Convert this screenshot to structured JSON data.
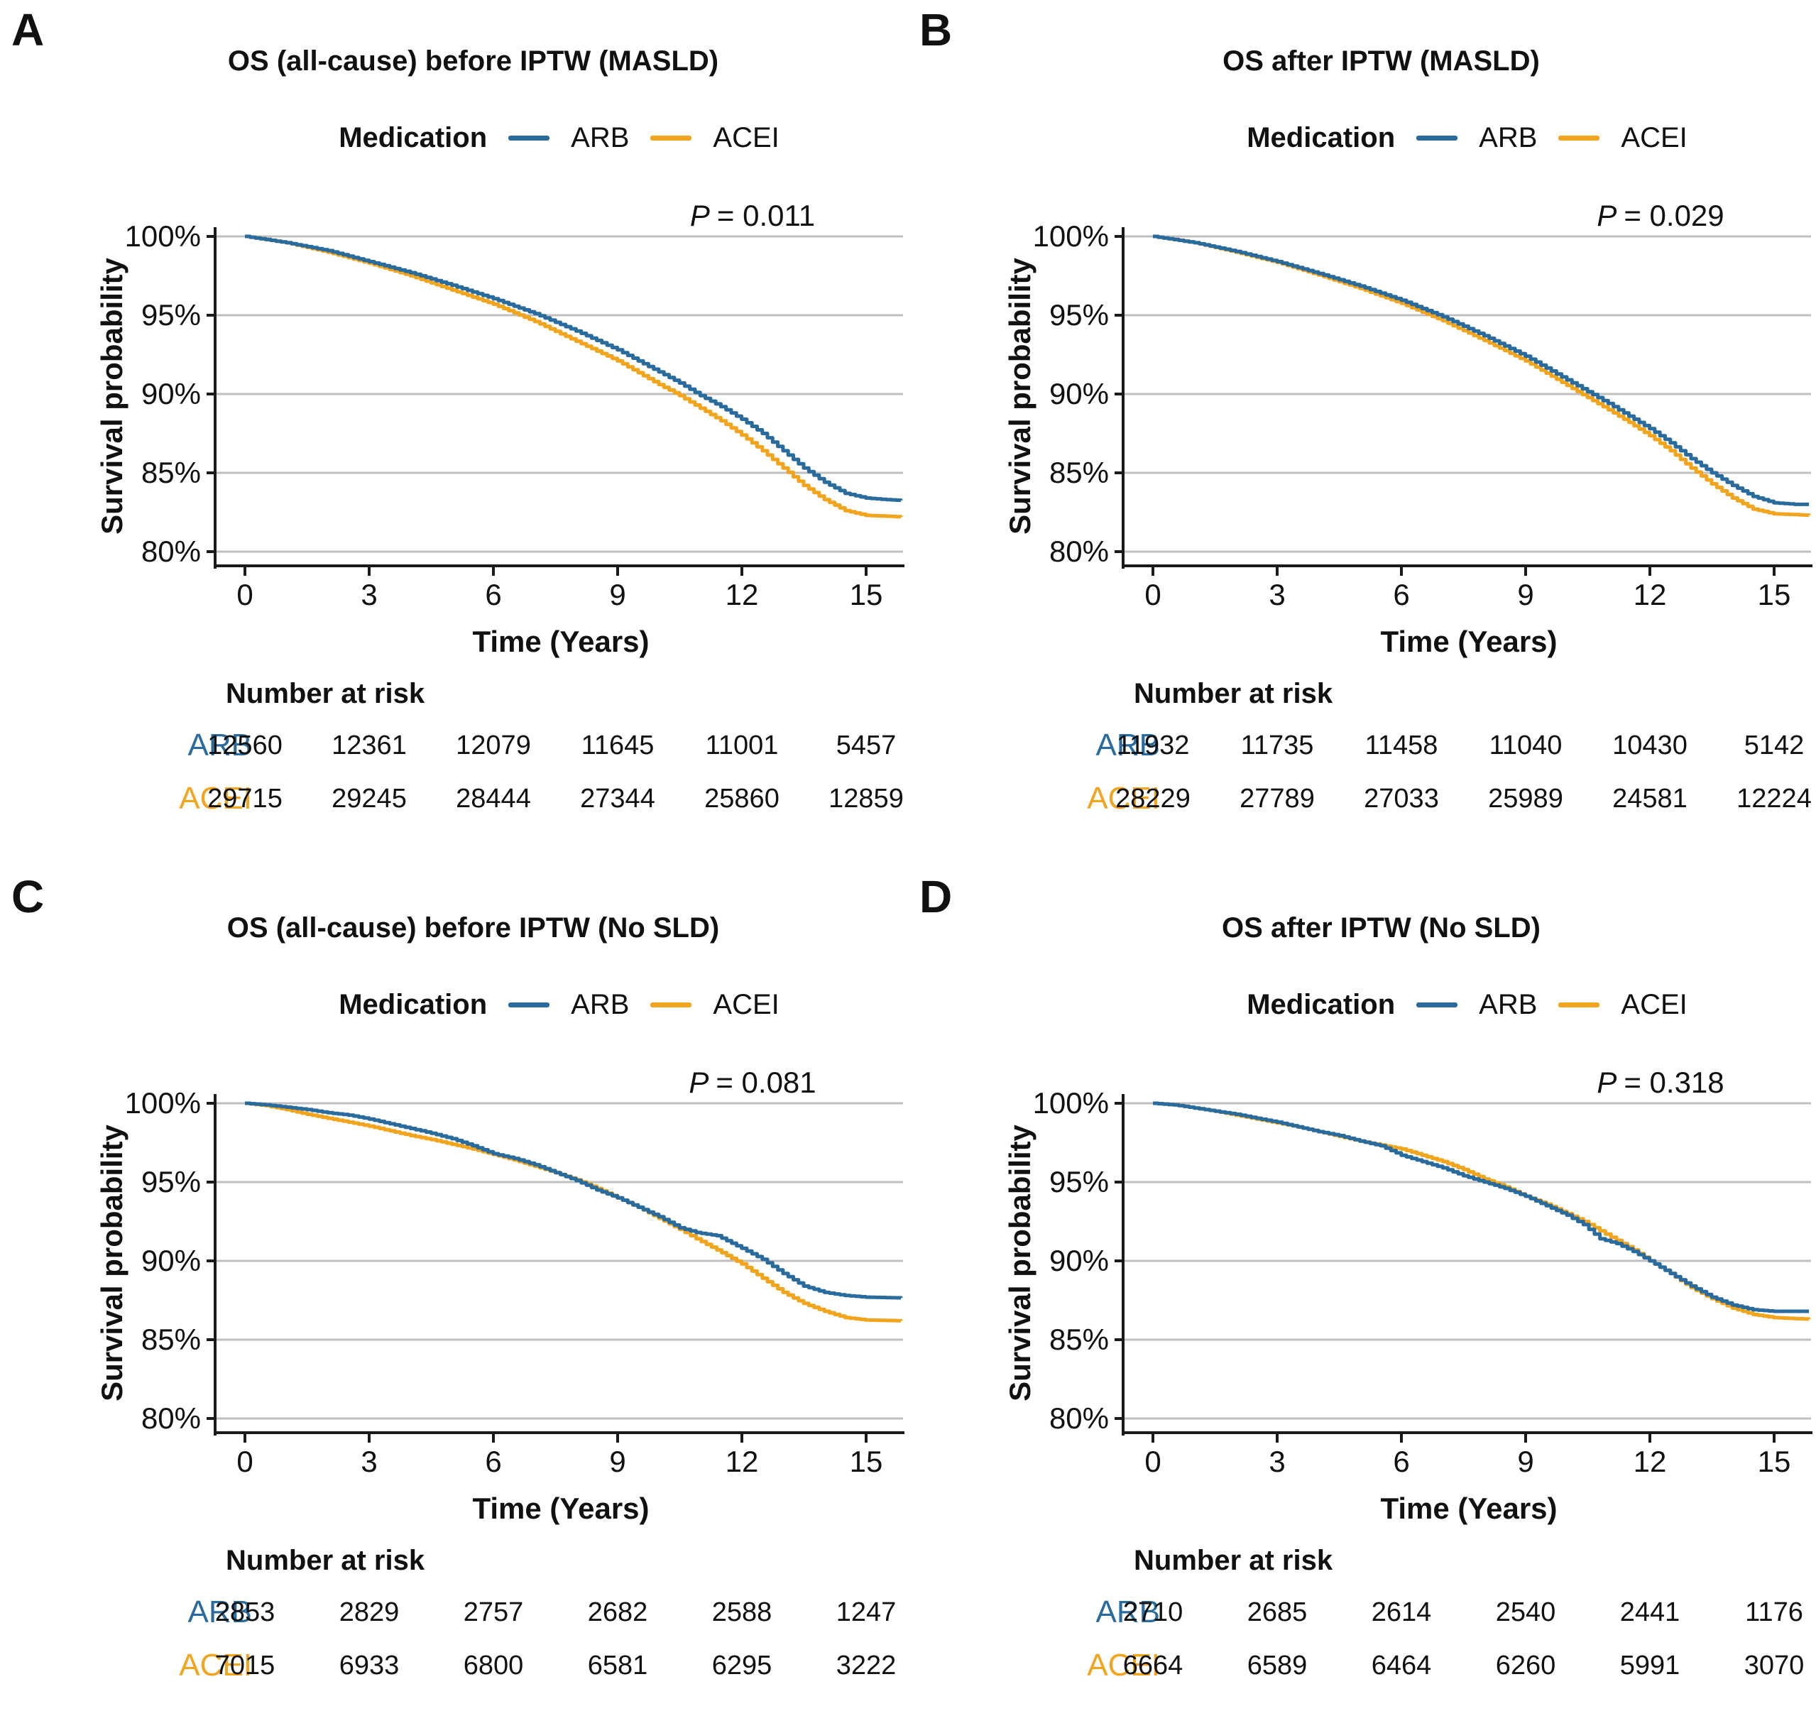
{
  "p_label": "P",
  "risk_header": "Number at risk",
  "legend": {
    "title": "Medication"
  },
  "axes": {
    "x_label": "Time (Years)",
    "y_label": "Survival probability",
    "x_ticks": [
      "0",
      "3",
      "6",
      "9",
      "12",
      "15"
    ],
    "y_ticks": [
      "100%",
      "95%",
      "90%",
      "85%",
      "80%"
    ],
    "x_range_years": [
      0,
      15.85
    ],
    "y_gridlines_percent": [
      100,
      95,
      90,
      85,
      80
    ]
  },
  "colors": {
    "arb": "#2A6B9E",
    "acei": "#F2A41C",
    "grid": "#BFBFBF",
    "axis": "#1A1A1A",
    "text": "#111111"
  },
  "panels": [
    {
      "letter": "A",
      "risk_rows": [
        {
          "label": "ARB",
          "values": [
            "12560",
            "12361",
            "12079",
            "11645",
            "11001",
            "5457"
          ]
        },
        {
          "label": "ACEI",
          "values": [
            "29715",
            "29245",
            "28444",
            "27344",
            "25860",
            "12859"
          ]
        }
      ]
    },
    {
      "letter": "B",
      "risk_rows": [
        {
          "label": "ARB",
          "values": [
            "11932",
            "11735",
            "11458",
            "11040",
            "10430",
            "5142"
          ]
        },
        {
          "label": "ACEI",
          "values": [
            "28229",
            "27789",
            "27033",
            "25989",
            "24581",
            "12224"
          ]
        }
      ]
    },
    {
      "letter": "C",
      "risk_rows": [
        {
          "label": "ARB",
          "values": [
            "2853",
            "2829",
            "2757",
            "2682",
            "2588",
            "1247"
          ]
        },
        {
          "label": "ACEI",
          "values": [
            "7015",
            "6933",
            "6800",
            "6581",
            "6295",
            "3222"
          ]
        }
      ]
    },
    {
      "letter": "D",
      "risk_rows": [
        {
          "label": "ARB",
          "values": [
            "2710",
            "2685",
            "2614",
            "2540",
            "2441",
            "1176"
          ]
        },
        {
          "label": "ACEI",
          "values": [
            "6664",
            "6589",
            "6464",
            "6260",
            "5991",
            "3070"
          ]
        }
      ]
    }
  ],
  "chart_data": [
    {
      "type": "line",
      "subtype": "kaplan-meier",
      "title": "OS (all-cause) before IPTW (MASLD)",
      "p_value": 0.011,
      "p_display": "= 0.011",
      "xlabel": "Time (Years)",
      "ylabel": "Survival probability",
      "xlim": [
        0,
        15.85
      ],
      "ylim_percent": [
        80,
        100
      ],
      "grid": "horizontal",
      "legend_position": "top",
      "series": [
        {
          "name": "ARB",
          "color_key": "arb",
          "x": [
            0,
            1,
            2,
            3,
            4,
            5,
            6,
            7,
            8,
            9,
            10,
            10.5,
            11,
            11.5,
            12,
            12.5,
            13,
            13.5,
            14,
            14.5,
            15,
            15.5,
            15.85
          ],
          "y": [
            100,
            99.6,
            99.1,
            98.4,
            97.7,
            96.9,
            96.05,
            95.1,
            94.0,
            92.8,
            91.4,
            90.7,
            89.9,
            89.2,
            88.4,
            87.5,
            86.4,
            85.3,
            84.4,
            83.7,
            83.4,
            83.3,
            83.25
          ]
        },
        {
          "name": "ACEI",
          "color_key": "acei",
          "x": [
            0,
            1,
            2,
            3,
            4,
            5,
            6,
            7,
            8,
            9,
            10,
            10.5,
            11,
            11.5,
            12,
            12.5,
            13,
            13.5,
            14,
            14.5,
            15,
            15.5,
            15.85
          ],
          "y": [
            100,
            99.6,
            99.0,
            98.3,
            97.5,
            96.6,
            95.7,
            94.6,
            93.35,
            92.1,
            90.6,
            89.9,
            89.1,
            88.3,
            87.4,
            86.4,
            85.3,
            84.2,
            83.3,
            82.6,
            82.3,
            82.25,
            82.2
          ]
        }
      ]
    },
    {
      "type": "line",
      "subtype": "kaplan-meier",
      "title": "OS after IPTW (MASLD)",
      "p_value": 0.029,
      "p_display": "= 0.029",
      "xlabel": "Time (Years)",
      "ylabel": "Survival probability",
      "xlim": [
        0,
        15.85
      ],
      "ylim_percent": [
        80,
        100
      ],
      "grid": "horizontal",
      "legend_position": "top",
      "series": [
        {
          "name": "ARB",
          "color_key": "arb",
          "x": [
            0,
            1,
            2,
            3,
            4,
            5,
            6,
            7,
            8,
            9,
            10,
            11,
            11.5,
            12,
            12.5,
            13,
            13.5,
            14,
            14.5,
            15,
            15.5,
            15.85
          ],
          "y": [
            100,
            99.6,
            99.05,
            98.4,
            97.65,
            96.85,
            95.95,
            94.9,
            93.7,
            92.4,
            90.9,
            89.4,
            88.6,
            87.8,
            86.9,
            85.9,
            85.0,
            84.2,
            83.5,
            83.1,
            83.0,
            83.0
          ]
        },
        {
          "name": "ACEI",
          "color_key": "acei",
          "x": [
            0,
            1,
            2,
            3,
            4,
            5,
            6,
            7,
            8,
            9,
            10,
            11,
            11.5,
            12,
            12.5,
            13,
            13.5,
            14,
            14.5,
            15,
            15.5,
            15.85
          ],
          "y": [
            100,
            99.6,
            99.0,
            98.35,
            97.55,
            96.7,
            95.75,
            94.65,
            93.4,
            92.1,
            90.55,
            89.0,
            88.2,
            87.35,
            86.4,
            85.3,
            84.3,
            83.4,
            82.7,
            82.4,
            82.35,
            82.3
          ]
        }
      ]
    },
    {
      "type": "line",
      "subtype": "kaplan-meier",
      "title": "OS (all-cause) before IPTW (No SLD)",
      "p_value": 0.081,
      "p_display": "= 0.081",
      "xlabel": "Time (Years)",
      "ylabel": "Survival probability",
      "xlim": [
        0,
        15.85
      ],
      "ylim_percent": [
        80,
        100
      ],
      "grid": "horizontal",
      "legend_position": "top",
      "series": [
        {
          "name": "ARB",
          "color_key": "arb",
          "x": [
            0,
            0.5,
            1,
            1.5,
            2,
            2.5,
            3,
            3.5,
            4,
            4.5,
            5,
            5.5,
            6,
            6.5,
            7,
            7.5,
            8,
            8.5,
            9,
            9.5,
            10,
            10.5,
            10.9,
            11.4,
            12,
            12.5,
            13,
            13.5,
            14,
            14.5,
            15,
            15.85
          ],
          "y": [
            100,
            99.9,
            99.75,
            99.6,
            99.4,
            99.25,
            99.0,
            98.7,
            98.4,
            98.1,
            97.75,
            97.3,
            96.8,
            96.5,
            96.1,
            95.6,
            95.1,
            94.5,
            94.0,
            93.4,
            92.8,
            92.1,
            91.8,
            91.6,
            90.8,
            90.1,
            89.2,
            88.4,
            88.0,
            87.8,
            87.7,
            87.65
          ]
        },
        {
          "name": "ACEI",
          "color_key": "acei",
          "x": [
            0,
            0.5,
            1,
            1.5,
            2,
            2.5,
            3,
            3.5,
            4,
            4.5,
            5,
            5.5,
            6,
            6.5,
            7,
            7.5,
            8,
            8.5,
            9,
            9.5,
            10,
            10.5,
            10.9,
            11.4,
            12,
            12.5,
            13,
            13.5,
            14,
            14.5,
            15,
            15.85
          ],
          "y": [
            100,
            99.85,
            99.6,
            99.3,
            99.05,
            98.8,
            98.55,
            98.25,
            97.95,
            97.7,
            97.4,
            97.1,
            96.75,
            96.4,
            96.0,
            95.6,
            95.15,
            94.6,
            94.0,
            93.4,
            92.7,
            92.0,
            91.4,
            90.7,
            89.8,
            88.9,
            88.0,
            87.3,
            86.8,
            86.4,
            86.25,
            86.2
          ]
        }
      ]
    },
    {
      "type": "line",
      "subtype": "kaplan-meier",
      "title": "OS after IPTW (No SLD)",
      "p_value": 0.318,
      "p_display": "= 0.318",
      "xlabel": "Time (Years)",
      "ylabel": "Survival probability",
      "xlim": [
        0,
        15.85
      ],
      "ylim_percent": [
        80,
        100
      ],
      "grid": "horizontal",
      "legend_position": "top",
      "series": [
        {
          "name": "ARB",
          "color_key": "arb",
          "x": [
            0,
            0.5,
            1,
            1.5,
            2,
            2.5,
            3,
            3.5,
            4,
            4.5,
            5,
            5.5,
            6,
            6.5,
            7,
            7.5,
            8,
            8.5,
            9,
            9.5,
            10,
            10.4,
            10.8,
            11.2,
            11.6,
            12,
            12.5,
            13,
            13.5,
            14,
            14.5,
            15,
            15.85
          ],
          "y": [
            100,
            99.9,
            99.7,
            99.5,
            99.3,
            99.05,
            98.8,
            98.5,
            98.2,
            97.95,
            97.6,
            97.3,
            96.7,
            96.3,
            95.9,
            95.4,
            95.0,
            94.6,
            94.1,
            93.5,
            92.9,
            92.3,
            91.4,
            91.1,
            90.6,
            90.0,
            89.2,
            88.4,
            87.7,
            87.2,
            86.9,
            86.8,
            86.8
          ]
        },
        {
          "name": "ACEI",
          "color_key": "acei",
          "x": [
            0,
            0.5,
            1,
            1.5,
            2,
            2.5,
            3,
            3.5,
            4,
            4.5,
            5,
            5.5,
            6,
            6.5,
            7,
            7.5,
            8,
            8.5,
            9,
            9.5,
            10,
            10.4,
            10.8,
            11.2,
            11.6,
            12,
            12.5,
            13,
            13.5,
            14,
            14.5,
            15,
            15.85
          ],
          "y": [
            100,
            99.9,
            99.7,
            99.5,
            99.25,
            99.0,
            98.75,
            98.5,
            98.2,
            97.9,
            97.6,
            97.35,
            97.1,
            96.7,
            96.3,
            95.8,
            95.2,
            94.7,
            94.1,
            93.6,
            93.0,
            92.5,
            91.9,
            91.3,
            90.7,
            90.0,
            89.2,
            88.3,
            87.6,
            87.0,
            86.6,
            86.4,
            86.3
          ]
        }
      ]
    }
  ]
}
